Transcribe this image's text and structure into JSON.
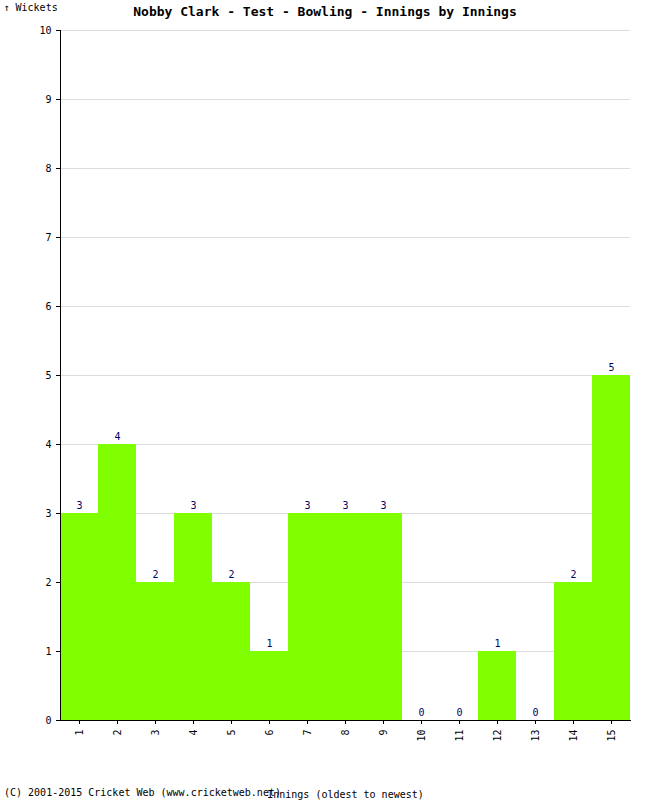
{
  "chart_data": {
    "type": "bar",
    "title": "Nobby Clark - Test - Bowling - Innings by Innings",
    "x_label": "Innings (oldest to newest)",
    "y_label": "Wickets",
    "caption": "(C) 2001-2015 Cricket Web (www.cricketweb.net)",
    "categories": [
      "1",
      "2",
      "3",
      "4",
      "5",
      "6",
      "7",
      "8",
      "9",
      "10",
      "11",
      "12",
      "13",
      "14",
      "15"
    ],
    "values": [
      3,
      4,
      2,
      3,
      2,
      1,
      3,
      3,
      3,
      0,
      0,
      1,
      0,
      2,
      5
    ],
    "color": "#7fff00",
    "ylim": [
      0,
      10
    ],
    "yticks": [
      0,
      1,
      2,
      3,
      4,
      5,
      6,
      7,
      8,
      9,
      10
    ],
    "grid": true,
    "data_labels": true
  }
}
